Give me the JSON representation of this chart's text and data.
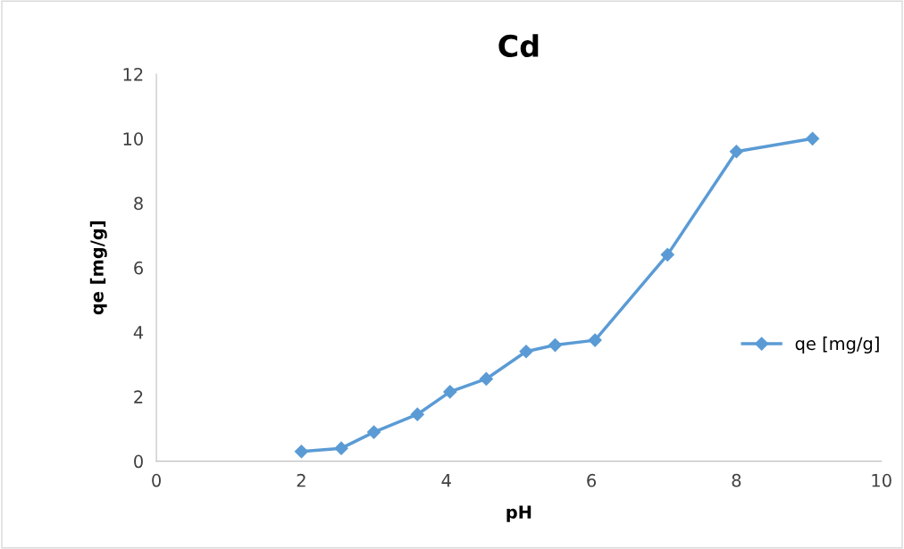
{
  "chart_data": {
    "type": "line",
    "title": "Cd",
    "xlabel": "pH",
    "ylabel": "qe [mg/g]",
    "x": [
      2.0,
      2.55,
      3.0,
      3.6,
      4.05,
      4.55,
      5.1,
      5.5,
      6.05,
      7.05,
      8.0,
      9.05
    ],
    "series": [
      {
        "name": "qe [mg/g]",
        "color": "#5b9bd5",
        "values": [
          0.3,
          0.4,
          0.9,
          1.45,
          2.15,
          2.55,
          3.4,
          3.6,
          3.75,
          6.4,
          9.6,
          10.0
        ]
      }
    ],
    "xlim": [
      0,
      10
    ],
    "xticks": [
      0,
      2,
      4,
      6,
      8,
      10
    ],
    "ylim": [
      0,
      12
    ],
    "yticks": [
      0,
      2,
      4,
      6,
      8,
      10,
      12
    ],
    "marker": "diamond",
    "legend": "right",
    "grid": false
  }
}
